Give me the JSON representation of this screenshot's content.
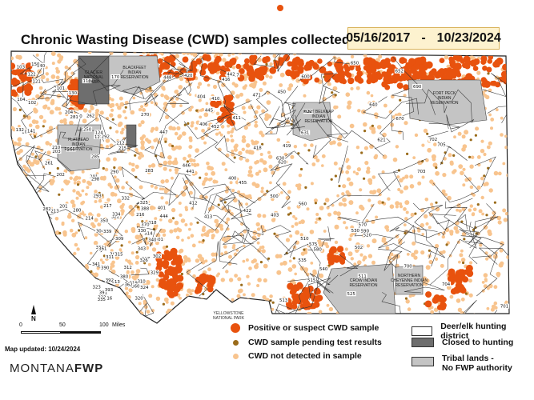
{
  "header": {
    "title": "Chronic Wasting Disease (CWD) samples collected from",
    "date_start": "05/16/2017",
    "date_sep": "-",
    "date_end": "10/23/2024"
  },
  "colors": {
    "positive": "#e8520e",
    "pending": "#9a6b1a",
    "not_detected": "#f8c48e",
    "tribal": "#c4c4c4",
    "closed": "#6e6e6e",
    "district_border": "#222222"
  },
  "legend": {
    "positive": "Positive or suspect CWD sample",
    "pending": "CWD sample pending test results",
    "not_detected": "CWD not detected in sample",
    "district": "Deer/elk hunting district",
    "closed": "Closed to hunting",
    "tribal_line1": "Tribal lands -",
    "tribal_line2": "No FWP authority"
  },
  "scale_bar": {
    "t0": "0",
    "t1": "50",
    "t2": "100",
    "unit": "Miles"
  },
  "north_label": "N",
  "map_updated": "Map updated: 10/24/2024",
  "logo": {
    "part1": "MONTANA",
    "part2": "FWP"
  },
  "reservations": [
    {
      "name1": "BLACKFEET",
      "name2": "INDIAN",
      "name3": "RESERVATION"
    },
    {
      "name1": "GLACIER",
      "name2": "NATIONAL",
      "name3": "PARK"
    },
    {
      "name1": "FLATHEAD",
      "name2": "INDIAN",
      "name3": "RESERVATION"
    },
    {
      "name1": "FORT BELKNAP",
      "name2": "INDIAN",
      "name3": "RESERVATION"
    },
    {
      "name1": "FORT PECK",
      "name2": "INDIAN",
      "name3": "RESERVATION"
    },
    {
      "name1": "CROW INDIAN",
      "name2": "RESERVATION",
      "name3": ""
    },
    {
      "name1": "NORTHERN",
      "name2": "CHEYENNE INDIAN",
      "name3": "RESERVATION"
    }
  ],
  "park_label": {
    "line1": "YELLOWSTONE",
    "line2": "NATIONAL PARK"
  },
  "districts": [
    "100",
    "101",
    "102",
    "103",
    "104",
    "110",
    "121",
    "122",
    "123",
    "124",
    "130",
    "132",
    "140",
    "141",
    "150",
    "170",
    "201",
    "202",
    "203",
    "204",
    "210",
    "212",
    "213",
    "214",
    "215",
    "216",
    "217",
    "240",
    "250",
    "260",
    "261",
    "262",
    "270",
    "280",
    "281",
    "282",
    "283",
    "285",
    "290",
    "291",
    "292",
    "293",
    "298",
    "301",
    "302",
    "303",
    "304",
    "309",
    "310",
    "311",
    "312",
    "313",
    "314",
    "315",
    "316",
    "317",
    "318",
    "319",
    "320",
    "322",
    "323",
    "324",
    "325",
    "326",
    "329",
    "330",
    "331",
    "332",
    "333",
    "334",
    "335",
    "339",
    "340",
    "341",
    "343",
    "350",
    "360",
    "361",
    "362",
    "370",
    "380",
    "388",
    "390",
    "391",
    "392",
    "393",
    "400",
    "401",
    "403",
    "404",
    "405",
    "406",
    "410",
    "411",
    "412",
    "413",
    "416",
    "417",
    "418",
    "419",
    "420",
    "422",
    "441",
    "442",
    "444",
    "445",
    "446",
    "447",
    "448",
    "450",
    "452",
    "455",
    "471",
    "500",
    "502",
    "510",
    "511",
    "513",
    "515",
    "520",
    "525",
    "530",
    "535",
    "540",
    "560",
    "570",
    "575",
    "580",
    "590",
    "600",
    "620",
    "621",
    "622",
    "630",
    "631",
    "640",
    "650",
    "652",
    "670",
    "690",
    "700",
    "701",
    "702",
    "703",
    "704",
    "705"
  ]
}
